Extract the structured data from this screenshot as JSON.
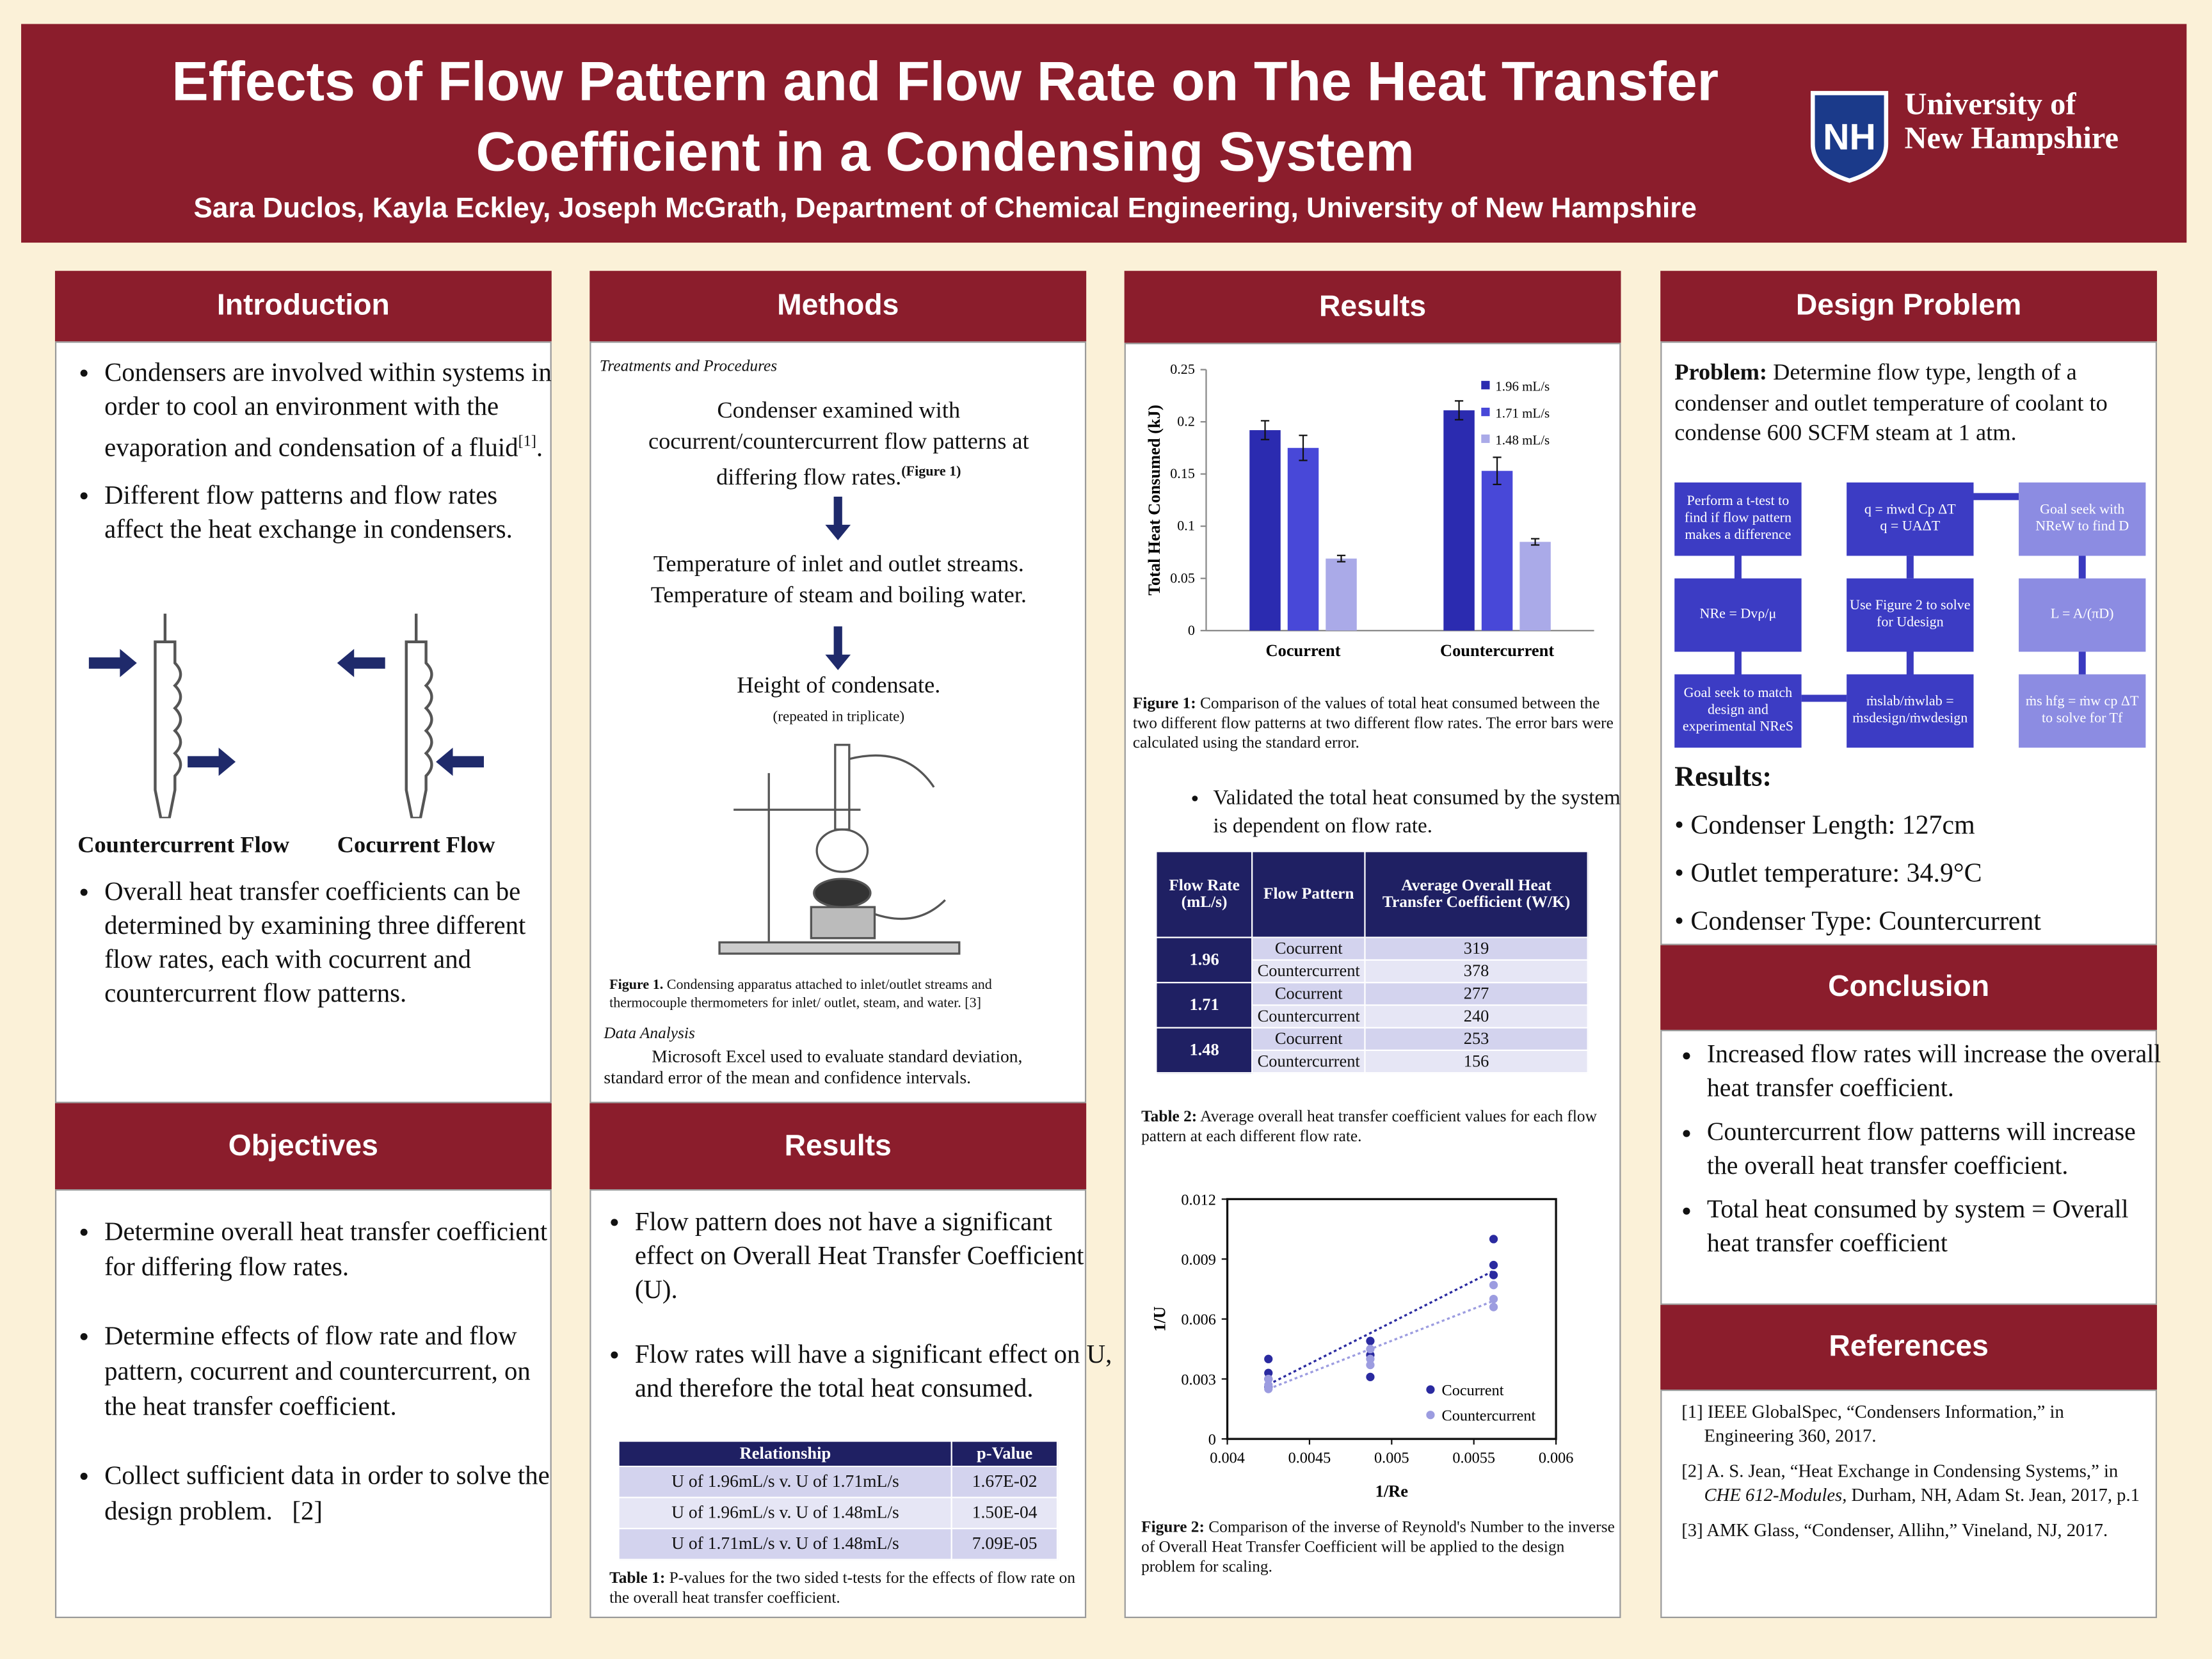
{
  "header": {
    "title": "Effects of Flow Pattern and Flow Rate on The Heat Transfer Coefficient in a Condensing System",
    "authors": "Sara Duclos, Kayla Eckley, Joseph McGrath, Department of Chemical Engineering, University of New Hampshire",
    "logo_mark": "NH",
    "logo_text": [
      "University of",
      "New Hampshire"
    ]
  },
  "introduction": {
    "heading": "Introduction",
    "bullets": [
      {
        "text": "Condensers are involved within systems in order to cool an environment with the evaporation and condensation of a fluid",
        "sup": "[1]",
        "end": "."
      },
      {
        "text": "Different flow patterns and flow rates affect the heat exchange in condensers."
      }
    ],
    "figure_labels": [
      "Countercurrent Flow",
      "Cocurrent Flow"
    ],
    "bullets2": [
      "Overall heat transfer coefficients can be determined by examining three different flow rates, each with cocurrent and countercurrent flow patterns."
    ]
  },
  "objectives": {
    "heading": "Objectives",
    "bullets": [
      {
        "text": "Determine overall heat transfer coefficient for differing flow rates."
      },
      {
        "text": "Determine effects of flow rate and flow pattern, cocurrent and countercurrent, on the heat transfer coefficient."
      },
      {
        "text": "Collect sufficient data in order to solve the design problem.",
        "ref": "[2]"
      }
    ]
  },
  "methods": {
    "heading": "Methods",
    "subheading": "Treatments and Procedures",
    "steps": [
      {
        "text": "Condenser examined with cocurrent/countercurrent flow patterns at differing flow rates.",
        "sup": "(Figure 1)"
      },
      {
        "text": "Temperature of inlet and outlet streams. Temperature of steam and boiling water."
      },
      {
        "text": "Height of condensate."
      }
    ],
    "note": "(repeated in triplicate)",
    "figure_caption": {
      "label": "Figure 1.",
      "text": "Condensing apparatus attached to inlet/outlet streams and thermocouple thermometers for inlet/ outlet, steam, and water. [3]"
    },
    "analysis_heading": "Data Analysis",
    "analysis_text": "Microsoft Excel used to evaluate standard deviation, standard error of the mean and confidence intervals."
  },
  "results_left": {
    "heading": "Results",
    "bullets": [
      "Flow pattern does not have a significant effect on Overall Heat Transfer Coefficient (U).",
      "Flow rates will have a significant effect on U, and therefore the total heat consumed."
    ],
    "table": {
      "headers": [
        "Relationship",
        "p-Value"
      ],
      "rows": [
        [
          "U of 1.96mL/s v. U of 1.71mL/s",
          "1.67E-02"
        ],
        [
          "U of 1.96mL/s v. U of 1.48mL/s",
          "1.50E-04"
        ],
        [
          "U of 1.71mL/s v. U of 1.48mL/s",
          "7.09E-05"
        ]
      ]
    },
    "table_caption": {
      "label": "Table 1:",
      "text": "P-values for the two sided t-tests for the effects of flow rate on the overall heat transfer coefficient."
    }
  },
  "results_right": {
    "heading": "Results",
    "figure1_caption": {
      "label": "Figure 1:",
      "text": "Comparison of the values of total heat consumed between the two different flow patterns at two different flow rates. The error bars were calculated using the standard error."
    },
    "bullet": "Validated the total heat consumed by the system is dependent on flow rate.",
    "table": {
      "headers": [
        "Flow Rate (mL/s)",
        "Flow Pattern",
        "Average Overall Heat Transfer Coefficient (W/K)"
      ],
      "groups": [
        {
          "rate": "1.96",
          "rows": [
            [
              "Cocurrent",
              "319"
            ],
            [
              "Countercurrent",
              "378"
            ]
          ]
        },
        {
          "rate": "1.71",
          "rows": [
            [
              "Cocurrent",
              "277"
            ],
            [
              "Countercurrent",
              "240"
            ]
          ]
        },
        {
          "rate": "1.48",
          "rows": [
            [
              "Cocurrent",
              "253"
            ],
            [
              "Countercurrent",
              "156"
            ]
          ]
        }
      ]
    },
    "table_caption": {
      "label": "Table 2:",
      "text": "Average overall heat transfer coefficient values for each flow pattern at each different flow rate."
    },
    "figure2_caption": {
      "label": "Figure 2:",
      "text": "Comparison of the inverse of Reynold's Number to the inverse of Overall Heat Transfer Coefficient will be applied to the design problem for scaling."
    }
  },
  "chart_data": [
    {
      "type": "bar",
      "y_label": "Total Heat Consumed (kJ)",
      "categories": [
        "Cocurrent",
        "Countercurrent"
      ],
      "ylim": [
        0,
        0.25
      ],
      "yticks": [
        0,
        0.05,
        0.1,
        0.15,
        0.2,
        0.25
      ],
      "series": [
        {
          "name": "1.96 mL/s",
          "color": "#2b2bb0",
          "values": [
            0.192,
            0.211
          ],
          "errors": [
            0.009,
            0.009
          ]
        },
        {
          "name": "1.71 mL/s",
          "color": "#4848d8",
          "values": [
            0.175,
            0.153
          ],
          "errors": [
            0.012,
            0.013
          ]
        },
        {
          "name": "1.48 mL/s",
          "color": "#aaaae8",
          "values": [
            0.069,
            0.085
          ],
          "errors": [
            0.003,
            0.003
          ]
        }
      ]
    },
    {
      "type": "scatter",
      "x_label": "1/Re",
      "y_label": "1/U",
      "xlim": [
        0.004,
        0.006
      ],
      "xticks": [
        0.004,
        0.0045,
        0.005,
        0.0055,
        0.006
      ],
      "ylim": [
        0,
        0.012
      ],
      "yticks": [
        0,
        0.003,
        0.006,
        0.009,
        0.012
      ],
      "trendline": true,
      "series": [
        {
          "name": "Cocurrent",
          "color": "#2a2aa0",
          "x": [
            0.00425,
            0.00425,
            0.00425,
            0.00425,
            0.00487,
            0.00487,
            0.00487,
            0.00562,
            0.00562,
            0.00562
          ],
          "values": [
            0.004,
            0.0033,
            0.003,
            0.0026,
            0.0049,
            0.0042,
            0.0031,
            0.01,
            0.0087,
            0.0082
          ]
        },
        {
          "name": "Countercurrent",
          "color": "#9c9ce0",
          "x": [
            0.00425,
            0.00425,
            0.00425,
            0.00487,
            0.00487,
            0.00487,
            0.00562,
            0.00562,
            0.00562
          ],
          "values": [
            0.003,
            0.0027,
            0.0025,
            0.0045,
            0.004,
            0.0037,
            0.0077,
            0.007,
            0.0066
          ]
        }
      ]
    }
  ],
  "design": {
    "heading": "Design Problem",
    "problem_label": "Problem:",
    "problem_text": "Determine flow type, length of a condenser and outlet temperature of coolant to condense 600 SCFM steam at 1 atm.",
    "nodes": [
      [
        "Perform a t-test to find if flow pattern makes a difference"
      ],
      [
        "q = ṁwd Cp ΔT",
        "q = UAΔT"
      ],
      [
        "Goal seek with NReW to find D"
      ],
      [
        "NRe = Dvρ/μ"
      ],
      [
        "Use Figure 2 to solve for Udesign"
      ],
      [
        "L = A/(πD)"
      ],
      [
        "Goal seek to match design and experimental NReS"
      ],
      [
        "ṁslab/ṁwlab =",
        "ṁsdesign/ṁwdesign"
      ],
      [
        "ṁs hfg = ṁw cp ΔT to solve for Tf"
      ]
    ],
    "results_heading": "Results:",
    "results": [
      "Condenser Length: 127cm",
      "Outlet temperature: 34.9°C",
      "Condenser Type: Countercurrent"
    ]
  },
  "conclusion": {
    "heading": "Conclusion",
    "bullets": [
      "Increased flow rates will increase the overall heat transfer coefficient.",
      "Countercurrent flow patterns will increase the overall heat transfer coefficient.",
      "Total heat consumed by system = Overall heat transfer coefficient"
    ]
  },
  "references": {
    "heading": "References",
    "items": [
      {
        "text": "[1] IEEE GlobalSpec, “Condensers Information,” in Engineering 360, 2017."
      },
      {
        "text": "[2] A. S. Jean, “Heat Exchange in Condensing Systems,” in ",
        "italic": "CHE 612-Modules,",
        "end": " Durham, NH, Adam St. Jean, 2017, p.1"
      },
      {
        "text": "[3] AMK Glass, “Condenser, Allihn,” Vineland, NJ, 2017."
      }
    ]
  }
}
